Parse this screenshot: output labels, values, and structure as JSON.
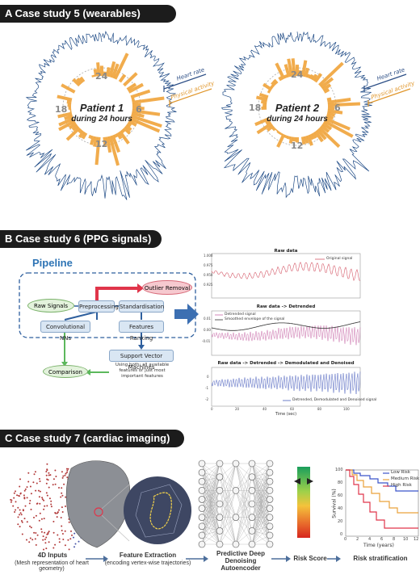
{
  "section_a": {
    "header": "A Case study 5 (wearables)",
    "patient1": {
      "name": "Patient 1",
      "sub": "during 24 hours"
    },
    "patient2": {
      "name": "Patient 2",
      "sub": "during 24 hours"
    },
    "hours": {
      "h24": "24",
      "h6": "6",
      "h12": "12",
      "h18": "18"
    },
    "legend_hr": "Heart rate",
    "legend_pa": "Physical activity"
  },
  "section_b": {
    "header": "B Case study 6 (PPG signals)",
    "pipeline_title": "Pipeline",
    "raw_signals": "Raw Signals",
    "preprocessing": "Preprocessing",
    "standardisation": "Standardisation",
    "outlier_removal": "Outlier Removal",
    "conv_nns": "Convolutional NNs",
    "features_ranking": "Features Ranking",
    "comparison": "Comparison",
    "svm": "Support Vector Machines",
    "svm_note": "Using both: all available features or just most important features",
    "plot1_title": "Raw data",
    "plot1_legend": "Original signal",
    "plot2_title": "Raw data -> Detrended",
    "plot2_legend1": "Detrended signal",
    "plot2_legend2": "Smoothed envelope of the signal",
    "plot3_title": "Raw data -> Detrended -> Demodulated and Denoised",
    "plot3_legend": "Detrended, Demodulated and Denoised signal",
    "xaxis_label": "Time (sec)",
    "p1_yticks": [
      "1.000",
      "0.975",
      "0.950",
      "0.925"
    ],
    "p2_yticks": [
      "0.01",
      "0.00",
      "-0.01"
    ],
    "p3_yticks": [
      "0",
      "-1",
      "-2"
    ],
    "xticks": [
      "0",
      "20",
      "40",
      "60",
      "80",
      "100"
    ]
  },
  "section_c": {
    "header": "C Case study 7 (cardiac imaging)",
    "step1_title": "4D Inputs",
    "step1_sub": "(Mesh representation of heart geometry)",
    "step2_title": "Feature Extraction",
    "step2_sub": "(encoding vertex-wise trajectories)",
    "step3_title": "Predictive Deep Denoising Autoencoder",
    "step4_title": "Risk Score",
    "step5_title": "Risk stratification",
    "km_legend": [
      "Low Risk",
      "Medium Risk",
      "High Risk"
    ],
    "km_ylabel": "Survival (%)",
    "km_xlabel": "Time (years)",
    "km_yticks": [
      "100",
      "80",
      "60",
      "40",
      "20",
      "0"
    ],
    "km_xticks": [
      "0",
      "2",
      "4",
      "6",
      "8",
      "10",
      "12"
    ],
    "colors": {
      "low": "#3b53c9",
      "medium": "#e9a23b",
      "high": "#e0354a"
    }
  }
}
